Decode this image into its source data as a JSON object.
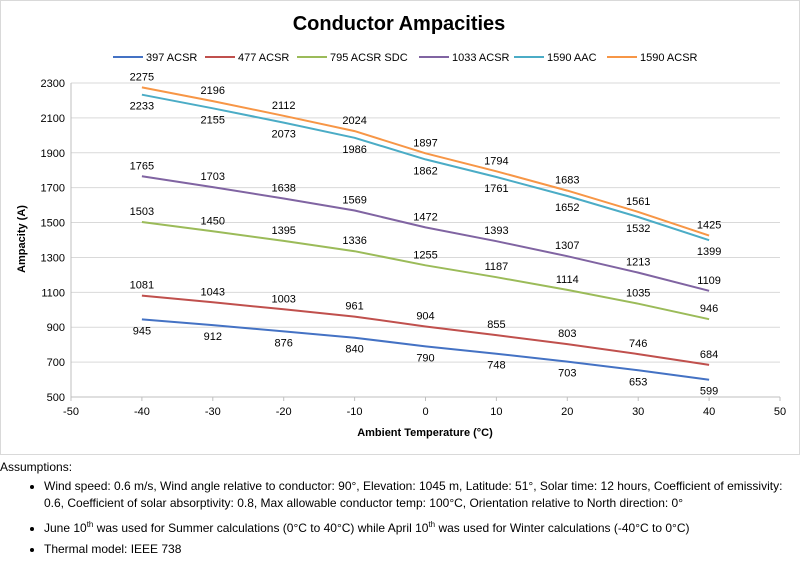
{
  "chart_data": {
    "type": "line",
    "title": "Conductor Ampacities",
    "xlabel": "Ambient Temperature (°C)",
    "ylabel": "Ampacity (A)",
    "xlim": [
      -50,
      50
    ],
    "ylim": [
      500,
      2300
    ],
    "xticks": [
      -50,
      -40,
      -30,
      -20,
      -10,
      0,
      10,
      20,
      30,
      40,
      50
    ],
    "yticks": [
      500,
      700,
      900,
      1100,
      1300,
      1500,
      1700,
      1900,
      2100,
      2300
    ],
    "grid": "horizontal",
    "legend": "top",
    "x": [
      -40,
      -30,
      -20,
      -10,
      0,
      10,
      20,
      30,
      40
    ],
    "series": [
      {
        "name": "397 ACSR",
        "color": "#4472c4",
        "values": [
          945,
          912,
          876,
          840,
          790,
          748,
          703,
          653,
          599
        ]
      },
      {
        "name": "477 ACSR",
        "color": "#c0504d",
        "values": [
          1081,
          1043,
          1003,
          961,
          904,
          855,
          803,
          746,
          684
        ]
      },
      {
        "name": "795 ACSR SDC",
        "color": "#9bbb59",
        "values": [
          1503,
          1450,
          1395,
          1336,
          1255,
          1187,
          1114,
          1035,
          946
        ]
      },
      {
        "name": "1033 ACSR",
        "color": "#8064a2",
        "values": [
          1765,
          1703,
          1638,
          1569,
          1472,
          1393,
          1307,
          1213,
          1109
        ]
      },
      {
        "name": "1590 AAC",
        "color": "#4bacc6",
        "values": [
          2233,
          2155,
          2073,
          1986,
          1862,
          1761,
          1652,
          1532,
          1399
        ]
      },
      {
        "name": "1590 ACSR",
        "color": "#f79646",
        "values": [
          2275,
          2196,
          2112,
          2024,
          1897,
          1794,
          1683,
          1561,
          1425
        ]
      }
    ]
  },
  "notes": {
    "heading": "Assumptions:",
    "items": [
      {
        "parts": [
          "Wind speed: 0.6 m/s, Wind angle relative to conductor: 90°, Elevation: 1045 m, Latitude: 51°, Solar time: 12 hours, Coefficient of emissivity: 0.6, Coefficient of solar absorptivity: 0.8, Max allowable conductor temp: 100°C, Orientation relative to North direction: 0°"
        ]
      },
      {
        "parts": [
          "June 10",
          "th",
          " was used for Summer calculations (0°C to 40°C) while April 10",
          "th",
          " was used for Winter calculations (-40°C to 0°C)"
        ]
      },
      {
        "parts": [
          "Thermal model: IEEE 738"
        ]
      }
    ]
  }
}
